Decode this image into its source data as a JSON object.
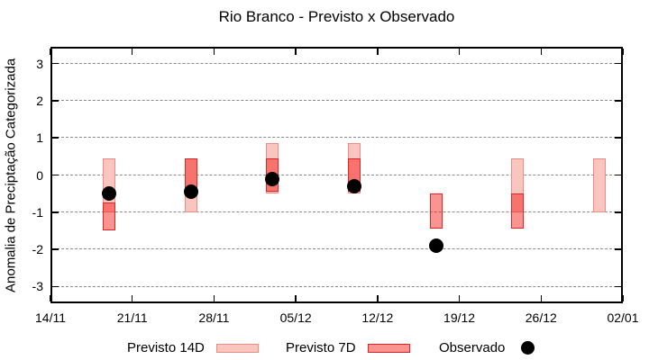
{
  "title": "Rio Branco - Previsto x Observado",
  "chart_data": {
    "type": "bar",
    "subtype": "forecast-range-candlesticks-with-observed-dots",
    "title": "Rio Branco - Previsto x Observado",
    "xlabel": "",
    "ylabel": "Anomalia de Preciptação Categorizada",
    "ylim": [
      -3.45,
      3.45
    ],
    "yticks": [
      3,
      2,
      1,
      0,
      -1,
      -2,
      -3
    ],
    "grid": "horizontal-dashed-gray",
    "x_axis": {
      "span_days": 49,
      "tick_days": [
        0,
        7,
        14,
        21,
        28,
        35,
        42,
        49
      ],
      "tick_labels": [
        "14/11",
        "21/11",
        "28/11",
        "05/12",
        "12/12",
        "19/12",
        "26/12",
        "02/01"
      ]
    },
    "legend": {
      "position": "bottom",
      "entries": [
        {
          "label": "Previsto 14D",
          "swatch": "light-pink-box"
        },
        {
          "label": "Previsto 7D",
          "swatch": "red-box"
        },
        {
          "label": "Observado",
          "swatch": "black-dot"
        }
      ]
    },
    "groups": [
      {
        "date": "19/11",
        "day": 5,
        "previsto_14d": [
          0.45,
          -1.0
        ],
        "previsto_7d": [
          -0.75,
          -1.5
        ],
        "observado": -0.5
      },
      {
        "date": "26/11",
        "day": 12,
        "previsto_14d": [
          0.45,
          -1.0
        ],
        "previsto_7d": [
          0.45,
          -0.45
        ],
        "observado": -0.45
      },
      {
        "date": "03/12",
        "day": 19,
        "previsto_14d": [
          0.85,
          -0.5
        ],
        "previsto_7d": [
          0.45,
          -0.45
        ],
        "observado": -0.1
      },
      {
        "date": "10/12",
        "day": 26,
        "previsto_14d": [
          0.85,
          -0.5
        ],
        "previsto_7d": [
          0.45,
          -0.45
        ],
        "observado": -0.3
      },
      {
        "date": "17/12",
        "day": 33,
        "previsto_14d": null,
        "previsto_7d": [
          -0.5,
          -1.45
        ],
        "observado": -1.9
      },
      {
        "date": "24/12",
        "day": 40,
        "previsto_14d": [
          0.45,
          -1.0
        ],
        "previsto_7d": [
          -0.5,
          -1.45
        ],
        "observado": null
      },
      {
        "date": "31/12",
        "day": 47,
        "previsto_14d": [
          0.45,
          -1.0
        ],
        "previsto_7d": null,
        "observado": null
      }
    ],
    "colors": {
      "previsto_14d_fill": "#f9c5bf",
      "previsto_14d_border": "#ef8b81",
      "previsto_7d_fill_rgba": "rgba(244,18,10,0.45)",
      "previsto_7d_border": "#e62222",
      "overlap_fill_apparent": "#f7736a",
      "observado": "#000000",
      "gridline": "#8a8a8a",
      "axis": "#000000",
      "background": "#ffffff"
    }
  }
}
